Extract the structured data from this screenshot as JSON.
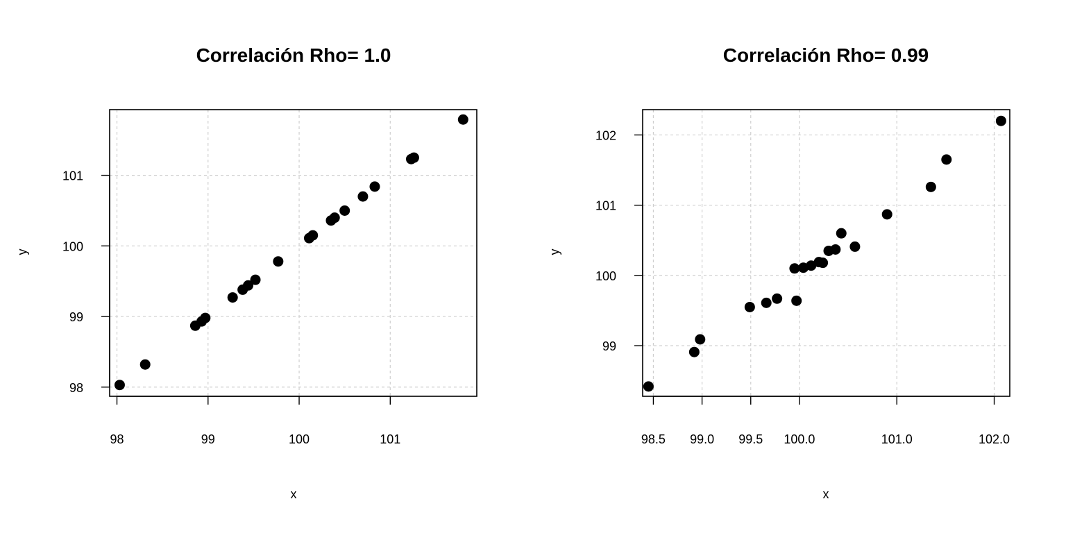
{
  "chart_data": [
    {
      "type": "scatter",
      "title": "Correlación Rho= 1.0",
      "xlabel": "x",
      "ylabel": "y",
      "xlim": [
        97.92,
        101.95
      ],
      "ylim": [
        97.87,
        101.93
      ],
      "xticks": [
        98,
        99,
        100,
        101
      ],
      "xtick_labels": [
        "98",
        "99",
        "100",
        "101"
      ],
      "yticks": [
        98,
        99,
        100,
        101
      ],
      "ytick_labels": [
        "98",
        "99",
        "100",
        "101"
      ],
      "grid": true,
      "points": [
        {
          "x": 98.03,
          "y": 98.03
        },
        {
          "x": 98.31,
          "y": 98.32
        },
        {
          "x": 98.86,
          "y": 98.87
        },
        {
          "x": 98.93,
          "y": 98.93
        },
        {
          "x": 98.97,
          "y": 98.98
        },
        {
          "x": 99.27,
          "y": 99.27
        },
        {
          "x": 99.38,
          "y": 99.38
        },
        {
          "x": 99.44,
          "y": 99.44
        },
        {
          "x": 99.52,
          "y": 99.52
        },
        {
          "x": 99.77,
          "y": 99.78
        },
        {
          "x": 100.11,
          "y": 100.11
        },
        {
          "x": 100.15,
          "y": 100.15
        },
        {
          "x": 100.35,
          "y": 100.36
        },
        {
          "x": 100.39,
          "y": 100.4
        },
        {
          "x": 100.5,
          "y": 100.5
        },
        {
          "x": 100.7,
          "y": 100.7
        },
        {
          "x": 100.83,
          "y": 100.84
        },
        {
          "x": 101.23,
          "y": 101.23
        },
        {
          "x": 101.26,
          "y": 101.25
        },
        {
          "x": 101.8,
          "y": 101.79
        }
      ]
    },
    {
      "type": "scatter",
      "title": "Correlación Rho= 0.99",
      "xlabel": "x",
      "ylabel": "y",
      "xlim": [
        98.39,
        102.16
      ],
      "ylim": [
        98.28,
        102.36
      ],
      "xticks": [
        98.5,
        99.0,
        99.5,
        100.0,
        101.0,
        102.0
      ],
      "xtick_labels": [
        "98.5",
        "99.0",
        "99.5",
        "100.0",
        "101.0",
        "102.0"
      ],
      "yticks": [
        99,
        100,
        101,
        102
      ],
      "ytick_labels": [
        "99",
        "100",
        "101",
        "102"
      ],
      "grid": true,
      "points": [
        {
          "x": 98.45,
          "y": 98.42
        },
        {
          "x": 98.92,
          "y": 98.91
        },
        {
          "x": 98.98,
          "y": 99.09
        },
        {
          "x": 99.49,
          "y": 99.55
        },
        {
          "x": 99.66,
          "y": 99.61
        },
        {
          "x": 99.77,
          "y": 99.67
        },
        {
          "x": 99.97,
          "y": 99.64
        },
        {
          "x": 99.95,
          "y": 100.1
        },
        {
          "x": 100.04,
          "y": 100.11
        },
        {
          "x": 100.12,
          "y": 100.14
        },
        {
          "x": 100.2,
          "y": 100.19
        },
        {
          "x": 100.24,
          "y": 100.18
        },
        {
          "x": 100.3,
          "y": 100.35
        },
        {
          "x": 100.37,
          "y": 100.37
        },
        {
          "x": 100.43,
          "y": 100.6
        },
        {
          "x": 100.57,
          "y": 100.41
        },
        {
          "x": 100.9,
          "y": 100.87
        },
        {
          "x": 101.35,
          "y": 101.26
        },
        {
          "x": 101.51,
          "y": 101.65
        },
        {
          "x": 102.07,
          "y": 102.2
        }
      ]
    }
  ]
}
